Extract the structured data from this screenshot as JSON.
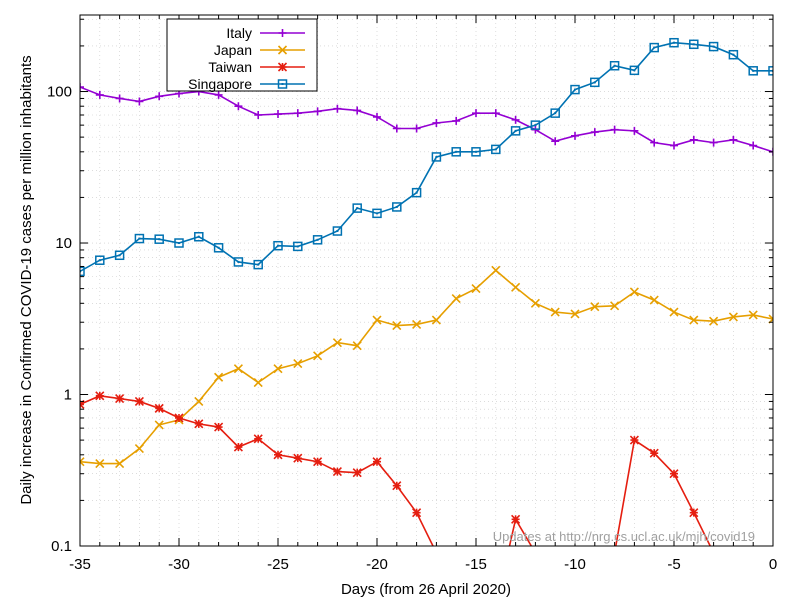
{
  "chart_data": {
    "type": "line",
    "xlabel": "Days (from 26 April 2020)",
    "ylabel": "Daily increase in Confirmed COVID-19 cases per million inhabitants",
    "xlim": [
      -35,
      0
    ],
    "ylim": [
      0.1,
      320
    ],
    "yscale": "log",
    "x_ticks": [
      -35,
      -30,
      -25,
      -20,
      -15,
      -10,
      -5,
      0
    ],
    "x_tick_labels": [
      "-35",
      "-30",
      "-25",
      "-20",
      "-15",
      "-10",
      "-5",
      "0"
    ],
    "y_ticks": [
      0.1,
      1,
      10,
      100
    ],
    "y_tick_labels": [
      "0.1",
      "1",
      "10",
      "100"
    ],
    "grid": true,
    "legend_position": "top-left",
    "watermark": "Updates at http://nrg.cs.ucl.ac.uk/mjh/covid19",
    "x": [
      -35,
      -34,
      -33,
      -32,
      -31,
      -30,
      -29,
      -28,
      -27,
      -26,
      -25,
      -24,
      -23,
      -22,
      -21,
      -20,
      -19,
      -18,
      -17,
      -16,
      -15,
      -14,
      -13,
      -12,
      -11,
      -10,
      -9,
      -8,
      -7,
      -6,
      -5,
      -4,
      -3,
      -2,
      -1,
      0
    ],
    "series": [
      {
        "name": "Italy",
        "color": "#9400d3",
        "marker": "plus",
        "values": [
          107,
          95,
          90,
          86,
          93,
          97,
          100,
          95,
          80,
          70,
          71,
          72,
          74,
          77,
          75,
          68,
          57,
          57,
          62,
          64,
          72,
          72,
          65,
          56,
          47,
          51,
          54,
          56,
          55,
          46,
          44,
          48,
          46,
          48,
          44,
          40
        ]
      },
      {
        "name": "Japan",
        "color": "#e69f00",
        "marker": "x",
        "values": [
          0.36,
          0.35,
          0.35,
          0.44,
          0.63,
          0.68,
          0.9,
          1.3,
          1.48,
          1.2,
          1.48,
          1.6,
          1.8,
          2.2,
          2.1,
          3.1,
          2.85,
          2.9,
          3.1,
          4.3,
          5.0,
          6.6,
          5.1,
          4.0,
          3.5,
          3.4,
          3.8,
          3.85,
          4.75,
          4.2,
          3.5,
          3.1,
          3.05,
          3.25,
          3.35,
          3.15
        ]
      },
      {
        "name": "Taiwan",
        "color": "#e51e10",
        "marker": "star",
        "values": [
          0.86,
          0.98,
          0.94,
          0.9,
          0.81,
          0.7,
          0.64,
          0.61,
          0.45,
          0.51,
          0.4,
          0.38,
          0.36,
          0.31,
          0.305,
          0.36,
          0.25,
          0.166,
          0.09,
          null,
          null,
          null,
          0.15,
          0.09,
          null,
          null,
          null,
          0.09,
          0.5,
          0.41,
          0.3,
          0.166,
          0.09,
          null,
          null,
          null
        ]
      },
      {
        "name": "Singapore",
        "color": "#0072b2",
        "marker": "square",
        "values": [
          6.5,
          7.7,
          8.3,
          10.7,
          10.6,
          10.0,
          11.0,
          9.3,
          7.5,
          7.2,
          9.6,
          9.5,
          10.5,
          12.0,
          17.0,
          15.7,
          17.3,
          21.5,
          37,
          40,
          40,
          41.5,
          55,
          60,
          72,
          103,
          115,
          148,
          138,
          195,
          210,
          205,
          198,
          175,
          137,
          137
        ]
      }
    ]
  }
}
